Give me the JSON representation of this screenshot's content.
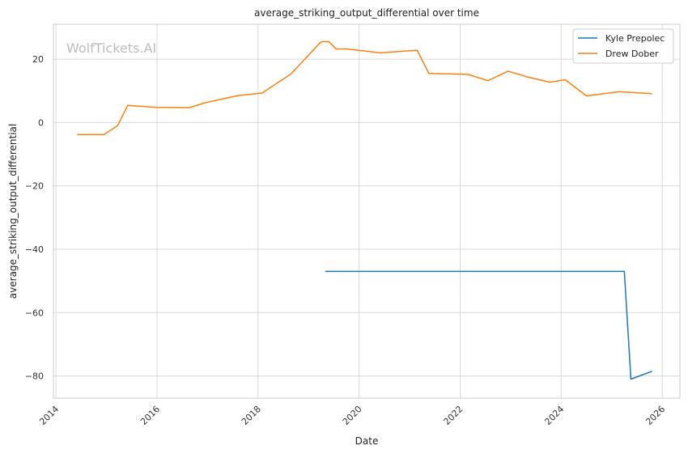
{
  "chart_data": {
    "type": "line",
    "title": "average_striking_output_differential over time",
    "xlabel": "Date",
    "ylabel": "average_striking_output_differential",
    "watermark": "WolfTickets.AI",
    "xlim": [
      2013.95,
      2026.35
    ],
    "ylim": [
      -87,
      31
    ],
    "x_ticks": [
      2014,
      2016,
      2018,
      2020,
      2022,
      2024,
      2026
    ],
    "y_ticks": [
      -80,
      -60,
      -40,
      -20,
      0,
      20
    ],
    "grid": true,
    "legend_position": "top-right",
    "series": [
      {
        "name": "Kyle Prepolec",
        "color": "#1f77b4",
        "x": [
          2019.33,
          2025.25,
          2025.38,
          2025.8
        ],
        "y": [
          -47,
          -47,
          -81,
          -78.5
        ]
      },
      {
        "name": "Drew Dober",
        "color": "#ff7f0e",
        "x": [
          2014.42,
          2014.95,
          2015.22,
          2015.42,
          2015.98,
          2016.65,
          2016.92,
          2017.6,
          2018.08,
          2018.65,
          2019.25,
          2019.4,
          2019.55,
          2019.75,
          2020.42,
          2021.15,
          2021.38,
          2022.15,
          2022.55,
          2022.95,
          2023.35,
          2023.78,
          2024.08,
          2024.5,
          2025.15,
          2025.8
        ],
        "y": [
          -3.8,
          -3.8,
          -1,
          5.4,
          4.8,
          4.7,
          6.1,
          8.5,
          9.3,
          15.3,
          25.5,
          25.5,
          23.2,
          23.2,
          22,
          22.8,
          15.5,
          15.2,
          13.2,
          16.2,
          14.3,
          12.7,
          13.5,
          8.4,
          9.7,
          9.1
        ]
      }
    ]
  }
}
